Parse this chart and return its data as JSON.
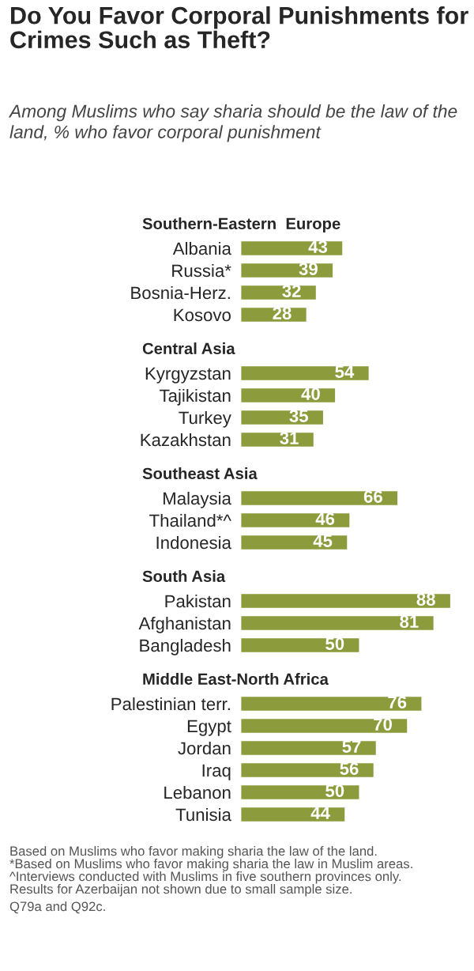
{
  "chart_data": [
    {
      "type": "bar",
      "orientation": "horizontal",
      "title": "Do You Favor Corporal Punishments for Crimes Such as Theft?",
      "subtitle": "Among Muslims who say sharia should be the law of the land, % who favor corporal punishment",
      "annotations": [
        "Southern-Eastern  Europe"
      ],
      "categories": [
        "Albania",
        "Russia*",
        "Bosnia-Herz.",
        "Kosovo"
      ],
      "values": [
        43,
        39,
        32,
        28
      ],
      "color": "#8c9c3c",
      "tick_labels": "y",
      "data_labels": true,
      "grid": false,
      "legend": false
    },
    {
      "type": "bar",
      "orientation": "horizontal",
      "annotations": [
        "Central Asia"
      ],
      "categories": [
        "Kyrgyzstan",
        "Tajikistan",
        "Turkey",
        "Kazakhstan"
      ],
      "values": [
        54,
        40,
        35,
        31
      ],
      "color": "#8c9c3c",
      "tick_labels": "y",
      "data_labels": true,
      "grid": false,
      "legend": false
    },
    {
      "type": "bar",
      "orientation": "horizontal",
      "annotations": [
        "Southeast Asia"
      ],
      "categories": [
        "Malaysia",
        "Thailand*^",
        "Indonesia"
      ],
      "values": [
        66,
        46,
        45
      ],
      "color": "#8c9c3c",
      "tick_labels": "y",
      "data_labels": true,
      "grid": false,
      "legend": false
    },
    {
      "type": "bar",
      "orientation": "horizontal",
      "annotations": [
        "South Asia"
      ],
      "categories": [
        "Pakistan",
        "Afghanistan",
        "Bangladesh"
      ],
      "values": [
        88,
        81,
        50
      ],
      "color": "#8c9c3c",
      "tick_labels": "y",
      "data_labels": true,
      "grid": false,
      "legend": false
    },
    {
      "type": "bar",
      "orientation": "horizontal",
      "annotations": [
        "Middle East-North Africa",
        "Based on Muslims who favor making sharia the law of the land.",
        "*Based on Muslims who favor making sharia the law in Muslim areas.",
        "^Interviews conducted with Muslims in five southern provinces only.",
        "Results for Azerbaijan not shown due to small sample size.",
        "Q79a and Q92c."
      ],
      "categories": [
        "Palestinian terr.",
        "Egypt",
        "Jordan",
        "Iraq",
        "Lebanon",
        "Tunisia"
      ],
      "values": [
        76,
        70,
        57,
        56,
        50,
        44
      ],
      "color": "#8c9c3c",
      "tick_labels": "y",
      "data_labels": true,
      "grid": false,
      "legend": false
    }
  ]
}
